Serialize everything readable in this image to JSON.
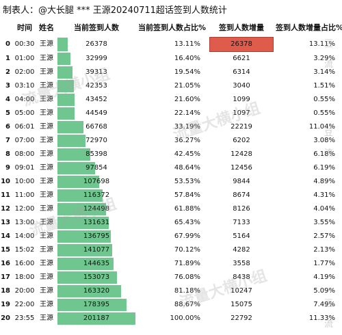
{
  "title": "制表人：@大长腿 *** 王源20240711超话签到人数统计",
  "columns": [
    "",
    "时间",
    "姓名",
    "当前签到人数",
    "当前签到人数占比%",
    "签到人数增量",
    "签到人数增量占比%"
  ],
  "max_count": 201187,
  "rows": [
    {
      "idx": "0",
      "time": "00:30",
      "name": "王源",
      "count": "26378",
      "count_value": 26378,
      "pct": "13.11%",
      "inc": "26378",
      "inc_pct": "13.11%"
    },
    {
      "idx": "1",
      "time": "01:00",
      "name": "王源",
      "count": "32999",
      "count_value": 32999,
      "pct": "16.40%",
      "inc": "6621",
      "inc_pct": "3.29%"
    },
    {
      "idx": "2",
      "time": "02:00",
      "name": "王源",
      "count": "39313",
      "count_value": 39313,
      "pct": "19.54%",
      "inc": "6314",
      "inc_pct": "3.14%"
    },
    {
      "idx": "3",
      "time": "03:10",
      "name": "王源",
      "count": "42353",
      "count_value": 42353,
      "pct": "21.05%",
      "inc": "3040",
      "inc_pct": "1.51%"
    },
    {
      "idx": "4",
      "time": "04:00",
      "name": "王源",
      "count": "43452",
      "count_value": 43452,
      "pct": "21.60%",
      "inc": "1099",
      "inc_pct": "0.55%"
    },
    {
      "idx": "5",
      "time": "05:00",
      "name": "王源",
      "count": "44549",
      "count_value": 44549,
      "pct": "22.14%",
      "inc": "1097",
      "inc_pct": "0.55%"
    },
    {
      "idx": "6",
      "time": "06:01",
      "name": "王源",
      "count": "66768",
      "count_value": 66768,
      "pct": "33.19%",
      "inc": "22219",
      "inc_pct": "11.04%"
    },
    {
      "idx": "7",
      "time": "07:00",
      "name": "王源",
      "count": "72970",
      "count_value": 72970,
      "pct": "36.27%",
      "inc": "6202",
      "inc_pct": "3.08%"
    },
    {
      "idx": "8",
      "time": "08:00",
      "name": "王源",
      "count": "85398",
      "count_value": 85398,
      "pct": "42.45%",
      "inc": "12428",
      "inc_pct": "6.18%"
    },
    {
      "idx": "9",
      "time": "09:01",
      "name": "王源",
      "count": "97854",
      "count_value": 97854,
      "pct": "48.64%",
      "inc": "12456",
      "inc_pct": "6.19%"
    },
    {
      "idx": "10",
      "time": "10:00",
      "name": "王源",
      "count": "107698",
      "count_value": 107698,
      "pct": "53.53%",
      "inc": "9844",
      "inc_pct": "4.89%"
    },
    {
      "idx": "11",
      "time": "11:00",
      "name": "王源",
      "count": "116372",
      "count_value": 116372,
      "pct": "57.84%",
      "inc": "8674",
      "inc_pct": "4.31%"
    },
    {
      "idx": "12",
      "time": "12:00",
      "name": "王源",
      "count": "124498",
      "count_value": 124498,
      "pct": "61.88%",
      "inc": "8126",
      "inc_pct": "4.04%"
    },
    {
      "idx": "13",
      "time": "13:00",
      "name": "王源",
      "count": "131631",
      "count_value": 131631,
      "pct": "65.43%",
      "inc": "7133",
      "inc_pct": "3.55%"
    },
    {
      "idx": "14",
      "time": "14:00",
      "name": "王源",
      "count": "136795",
      "count_value": 136795,
      "pct": "67.99%",
      "inc": "5164",
      "inc_pct": "2.57%"
    },
    {
      "idx": "15",
      "time": "15:02",
      "name": "王源",
      "count": "141077",
      "count_value": 141077,
      "pct": "70.12%",
      "inc": "4282",
      "inc_pct": "2.13%"
    },
    {
      "idx": "16",
      "time": "16:00",
      "name": "王源",
      "count": "144635",
      "count_value": 144635,
      "pct": "71.89%",
      "inc": "3558",
      "inc_pct": "1.77%"
    },
    {
      "idx": "17",
      "time": "18:00",
      "name": "王源",
      "count": "153073",
      "count_value": 153073,
      "pct": "76.08%",
      "inc": "8438",
      "inc_pct": "4.19%"
    },
    {
      "idx": "18",
      "time": "20:00",
      "name": "王源",
      "count": "163320",
      "count_value": 163320,
      "pct": "81.18%",
      "inc": "10247",
      "inc_pct": "5.09%"
    },
    {
      "idx": "19",
      "time": "22:00",
      "name": "王源",
      "count": "178395",
      "count_value": 178395,
      "pct": "88.67%",
      "inc": "15075",
      "inc_pct": "7.49%"
    },
    {
      "idx": "20",
      "time": "23:55",
      "name": "王源",
      "count": "201187",
      "count_value": 201187,
      "pct": "100.00%",
      "inc": "22792",
      "inc_pct": "11.33%"
    }
  ],
  "highlight_row": 0,
  "colors": {
    "bar": "#6fc78f",
    "highlight": "#df5b4c"
  },
  "watermark": "流量大横小组",
  "side_badge": "豆 流"
}
